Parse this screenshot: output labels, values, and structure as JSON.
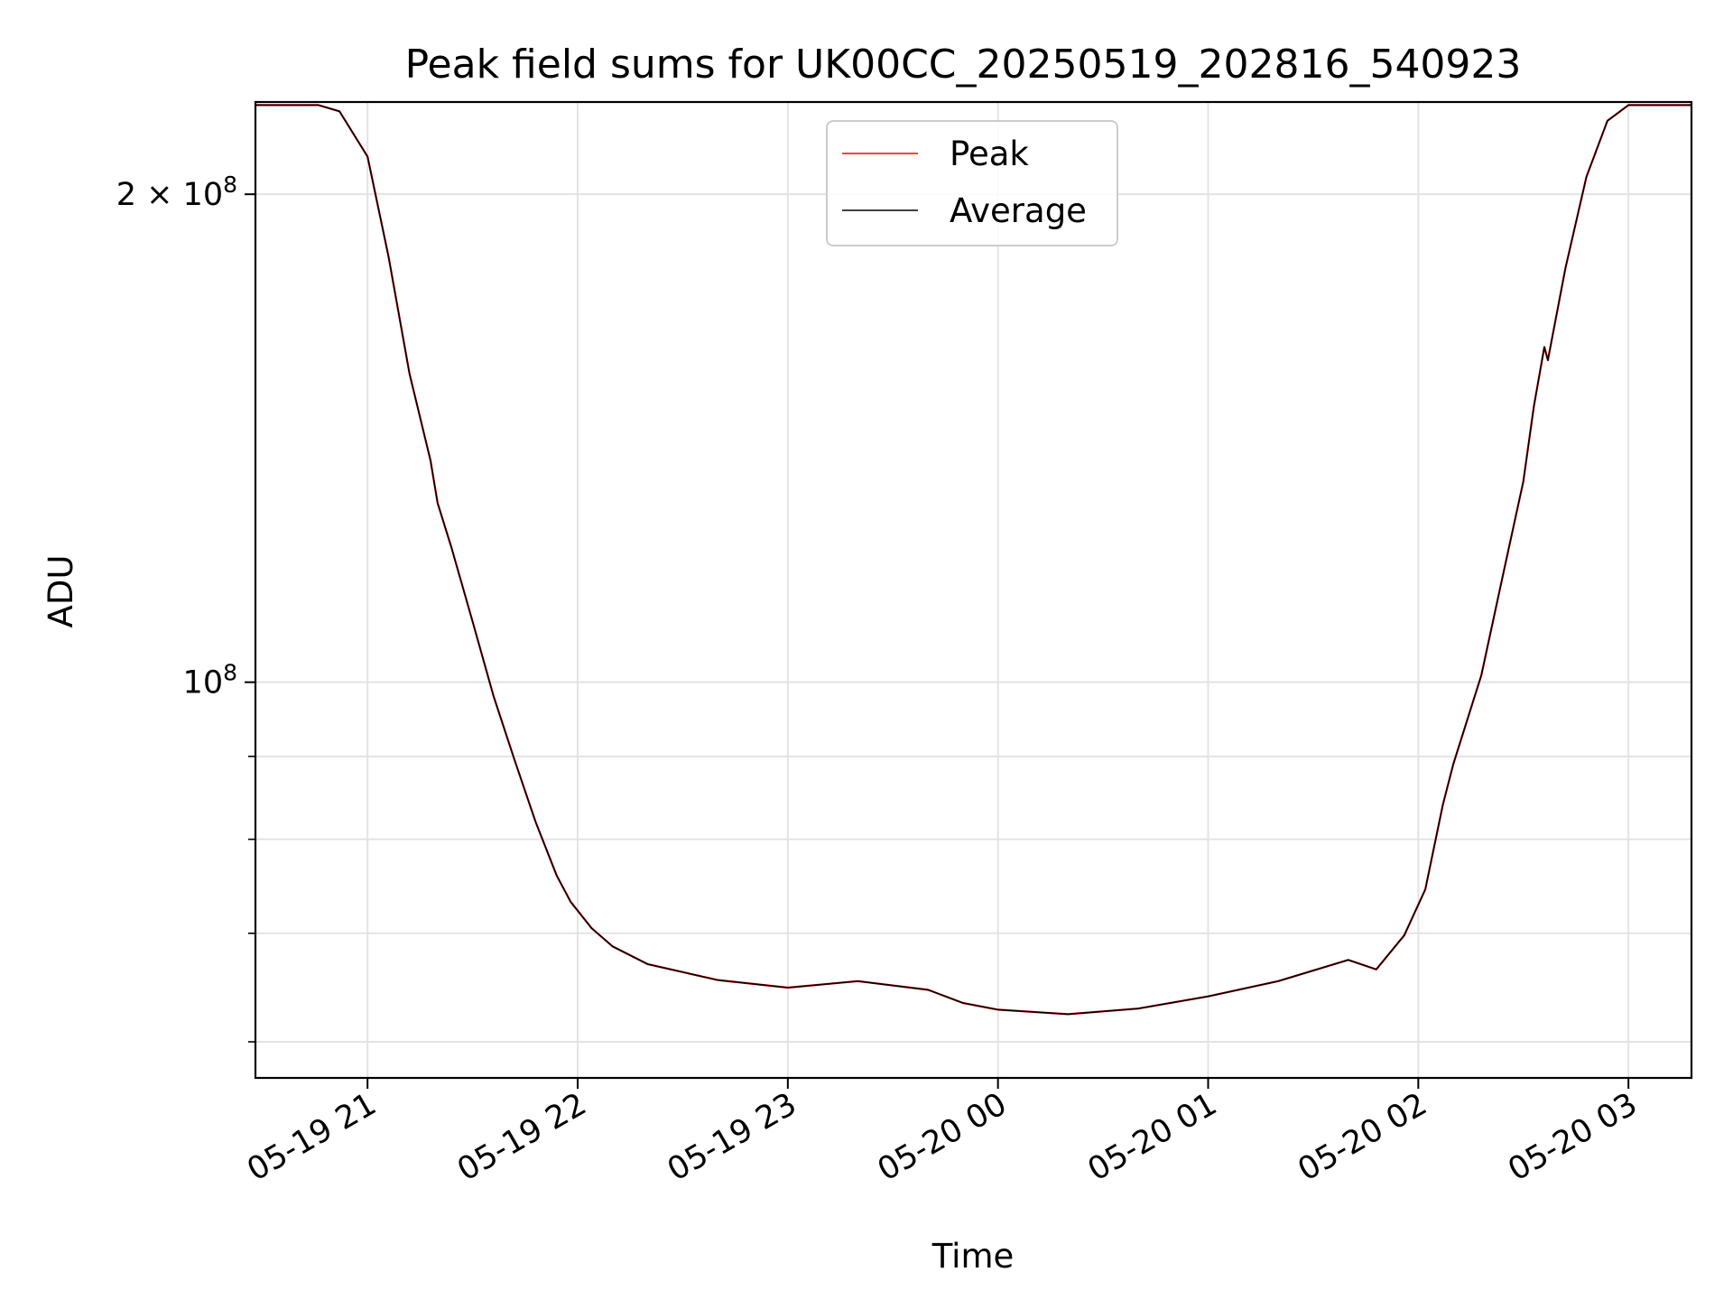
{
  "chart_data": {
    "type": "line",
    "title": "Peak field sums for UK00CC_20250519_202816_540923",
    "xlabel": "Time",
    "ylabel": "ADU",
    "yscale": "log",
    "grid": true,
    "legend_placement": "upper center",
    "xlim": [
      "2025-05-19 20:28",
      "2025-05-20 03:18"
    ],
    "ylim": [
      57000000,
      228000000
    ],
    "x_ticks": [
      {
        "value": "2025-05-19 21:00",
        "label": "05-19 21"
      },
      {
        "value": "2025-05-19 22:00",
        "label": "05-19 22"
      },
      {
        "value": "2025-05-19 23:00",
        "label": "05-19 23"
      },
      {
        "value": "2025-05-20 00:00",
        "label": "05-20 00"
      },
      {
        "value": "2025-05-20 01:00",
        "label": "05-20 01"
      },
      {
        "value": "2025-05-20 02:00",
        "label": "05-20 02"
      },
      {
        "value": "2025-05-20 03:00",
        "label": "05-20 03"
      }
    ],
    "y_major_ticks": [
      {
        "value": 100000000,
        "base": "10",
        "exp": "8"
      },
      {
        "value": 200000000,
        "mant": "2 × ",
        "base": "10",
        "exp": "8"
      }
    ],
    "y_minor_ticks": [
      60000000,
      70000000,
      80000000,
      90000000
    ],
    "series": [
      {
        "name": "Peak",
        "color": "#ff0000",
        "points": [
          [
            "2025-05-19 20:28",
            227000000
          ],
          [
            "2025-05-19 20:46",
            227000000
          ],
          [
            "2025-05-19 20:52",
            225000000
          ],
          [
            "2025-05-19 21:00",
            211000000
          ],
          [
            "2025-05-19 21:06",
            183000000
          ],
          [
            "2025-05-19 21:12",
            155000000
          ],
          [
            "2025-05-19 21:18",
            137000000
          ],
          [
            "2025-05-19 21:20",
            129000000
          ],
          [
            "2025-05-19 21:24",
            121000000
          ],
          [
            "2025-05-19 21:30",
            109000000
          ],
          [
            "2025-05-19 21:36",
            98000000
          ],
          [
            "2025-05-19 21:42",
            89500000
          ],
          [
            "2025-05-19 21:48",
            82000000
          ],
          [
            "2025-05-19 21:54",
            76000000
          ],
          [
            "2025-05-19 21:58",
            73200000
          ],
          [
            "2025-05-19 22:04",
            70500000
          ],
          [
            "2025-05-19 22:10",
            68700000
          ],
          [
            "2025-05-19 22:20",
            67000000
          ],
          [
            "2025-05-19 22:40",
            65500000
          ],
          [
            "2025-05-19 23:00",
            64800000
          ],
          [
            "2025-05-19 23:20",
            65400000
          ],
          [
            "2025-05-19 23:40",
            64600000
          ],
          [
            "2025-05-19 23:50",
            63400000
          ],
          [
            "2025-05-20 00:00",
            62800000
          ],
          [
            "2025-05-20 00:20",
            62400000
          ],
          [
            "2025-05-20 00:40",
            62900000
          ],
          [
            "2025-05-20 01:00",
            64000000
          ],
          [
            "2025-05-20 01:20",
            65400000
          ],
          [
            "2025-05-20 01:40",
            67400000
          ],
          [
            "2025-05-20 01:48",
            66500000
          ],
          [
            "2025-05-20 01:56",
            69800000
          ],
          [
            "2025-05-20 02:02",
            74500000
          ],
          [
            "2025-05-20 02:07",
            84000000
          ],
          [
            "2025-05-20 02:10",
            89000000
          ],
          [
            "2025-05-20 02:18",
            101000000
          ],
          [
            "2025-05-20 02:24",
            116000000
          ],
          [
            "2025-05-20 02:30",
            133000000
          ],
          [
            "2025-05-20 02:33",
            148000000
          ],
          [
            "2025-05-20 02:36",
            161000000
          ],
          [
            "2025-05-20 02:37",
            158000000
          ],
          [
            "2025-05-20 02:42",
            180000000
          ],
          [
            "2025-05-20 02:48",
            205000000
          ],
          [
            "2025-05-20 02:54",
            222000000
          ],
          [
            "2025-05-20 03:00",
            227000000
          ],
          [
            "2025-05-20 03:18",
            227000000
          ]
        ]
      },
      {
        "name": "Average",
        "color": "#000000",
        "points": [
          [
            "2025-05-19 20:28",
            227000000
          ],
          [
            "2025-05-19 20:46",
            227000000
          ],
          [
            "2025-05-19 20:52",
            225000000
          ],
          [
            "2025-05-19 21:00",
            211000000
          ],
          [
            "2025-05-19 21:06",
            183000000
          ],
          [
            "2025-05-19 21:12",
            155000000
          ],
          [
            "2025-05-19 21:18",
            137000000
          ],
          [
            "2025-05-19 21:20",
            129000000
          ],
          [
            "2025-05-19 21:24",
            121000000
          ],
          [
            "2025-05-19 21:30",
            109000000
          ],
          [
            "2025-05-19 21:36",
            98000000
          ],
          [
            "2025-05-19 21:42",
            89500000
          ],
          [
            "2025-05-19 21:48",
            82000000
          ],
          [
            "2025-05-19 21:54",
            76000000
          ],
          [
            "2025-05-19 21:58",
            73200000
          ],
          [
            "2025-05-19 22:04",
            70500000
          ],
          [
            "2025-05-19 22:10",
            68700000
          ],
          [
            "2025-05-19 22:20",
            67000000
          ],
          [
            "2025-05-19 22:40",
            65500000
          ],
          [
            "2025-05-19 23:00",
            64800000
          ],
          [
            "2025-05-19 23:20",
            65400000
          ],
          [
            "2025-05-19 23:40",
            64600000
          ],
          [
            "2025-05-19 23:50",
            63400000
          ],
          [
            "2025-05-20 00:00",
            62800000
          ],
          [
            "2025-05-20 00:20",
            62400000
          ],
          [
            "2025-05-20 00:40",
            62900000
          ],
          [
            "2025-05-20 01:00",
            64000000
          ],
          [
            "2025-05-20 01:20",
            65400000
          ],
          [
            "2025-05-20 01:40",
            67400000
          ],
          [
            "2025-05-20 01:48",
            66500000
          ],
          [
            "2025-05-20 01:56",
            69800000
          ],
          [
            "2025-05-20 02:02",
            74500000
          ],
          [
            "2025-05-20 02:07",
            84000000
          ],
          [
            "2025-05-20 02:10",
            89000000
          ],
          [
            "2025-05-20 02:18",
            101000000
          ],
          [
            "2025-05-20 02:24",
            116000000
          ],
          [
            "2025-05-20 02:30",
            133000000
          ],
          [
            "2025-05-20 02:33",
            148000000
          ],
          [
            "2025-05-20 02:36",
            161000000
          ],
          [
            "2025-05-20 02:37",
            158000000
          ],
          [
            "2025-05-20 02:42",
            180000000
          ],
          [
            "2025-05-20 02:48",
            205000000
          ],
          [
            "2025-05-20 02:54",
            222000000
          ],
          [
            "2025-05-20 03:00",
            227000000
          ],
          [
            "2025-05-20 03:18",
            227000000
          ]
        ]
      }
    ]
  }
}
